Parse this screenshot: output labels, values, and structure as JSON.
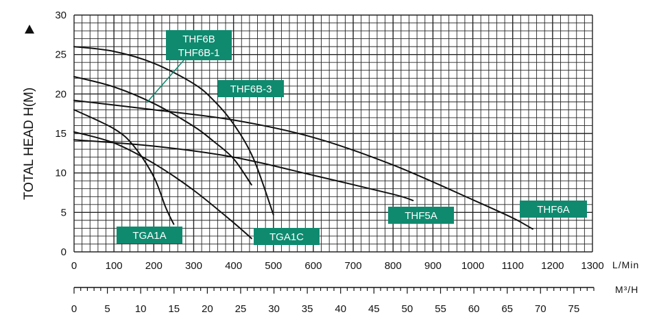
{
  "chart_data": {
    "type": "line",
    "ylabel": "TOTAL HEAD H(M)",
    "xlabel": "L/Min",
    "x2label": "M³/H",
    "xlim": [
      0,
      1300
    ],
    "ylim": [
      0,
      30
    ],
    "x_ticks": [
      0,
      100,
      200,
      300,
      400,
      500,
      600,
      700,
      800,
      900,
      1000,
      1100,
      1200,
      1300
    ],
    "y_ticks": [
      0,
      5,
      10,
      15,
      20,
      25,
      30
    ],
    "x2_ticks": [
      0,
      5,
      10,
      15,
      20,
      25,
      30,
      35,
      40,
      45,
      50,
      55,
      60,
      65,
      70,
      75
    ],
    "grid": true,
    "series": [
      {
        "name": "THF6B THF6B-1",
        "x": [
          0,
          100,
          200,
          300,
          350,
          400,
          450,
          500
        ],
        "y": [
          26,
          25.4,
          23.9,
          21.3,
          19.2,
          16.2,
          11.8,
          4.7
        ]
      },
      {
        "name": "THF6B-3",
        "x": [
          0,
          100,
          200,
          300,
          350,
          400,
          445
        ],
        "y": [
          22.2,
          20.9,
          18.8,
          15.9,
          14.0,
          11.8,
          8.5
        ]
      },
      {
        "name": "THF6A",
        "x": [
          0,
          200,
          400,
          600,
          800,
          1000,
          1100,
          1150
        ],
        "y": [
          19.2,
          18.0,
          16.7,
          14.5,
          11.0,
          6.6,
          4.3,
          2.9
        ]
      },
      {
        "name": "THF5A",
        "x": [
          0,
          200,
          400,
          600,
          800,
          850
        ],
        "y": [
          14.2,
          13.4,
          12.0,
          9.7,
          7.3,
          6.5
        ]
      },
      {
        "name": "TGA1C",
        "x": [
          0,
          100,
          200,
          300,
          400,
          445
        ],
        "y": [
          15.2,
          13.8,
          11.2,
          7.8,
          3.7,
          1.7
        ]
      },
      {
        "name": "TGA1A",
        "x": [
          0,
          100,
          150,
          200,
          230,
          250
        ],
        "y": [
          18.0,
          15.6,
          13.4,
          9.5,
          5.6,
          3.5
        ]
      }
    ],
    "labels": [
      {
        "text": "THF6B",
        "series": "THF6B THF6B-1"
      },
      {
        "text": "THF6B-1",
        "series": "THF6B THF6B-1"
      },
      {
        "text": "THF6B-3",
        "series": "THF6B-3"
      },
      {
        "text": "THF6A",
        "series": "THF6A"
      },
      {
        "text": "THF5A",
        "series": "THF5A"
      },
      {
        "text": "TGA1C",
        "series": "TGA1C"
      },
      {
        "text": "TGA1A",
        "series": "TGA1A"
      }
    ],
    "label_color": "#0f8a6f",
    "line_color": "#111111",
    "grid_color": "#222222"
  }
}
